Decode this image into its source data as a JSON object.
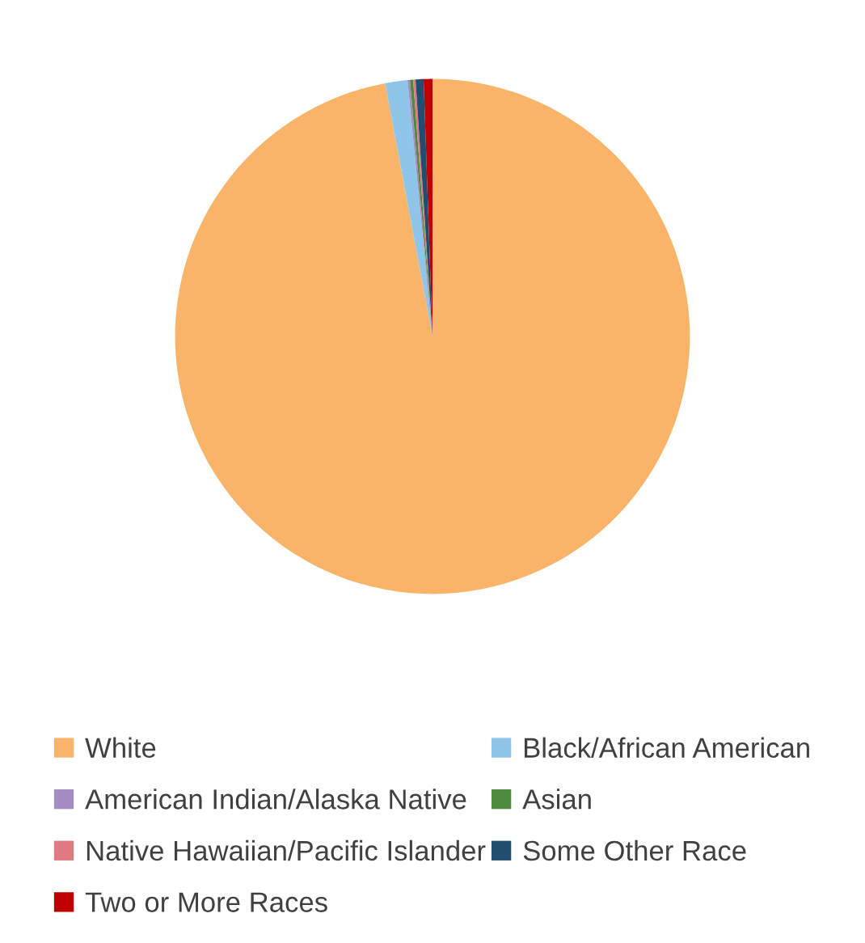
{
  "chart_data": {
    "type": "pie",
    "categories": [
      "White",
      "Black/African American",
      "American Indian/Alaska Native",
      "Asian",
      "Native Hawaiian/Pacific Islander",
      "Some Other Race",
      "Two or More Races"
    ],
    "values": [
      97.05,
      1.4,
      0.15,
      0.2,
      0.15,
      0.5,
      0.55
    ],
    "colors": [
      "#fab46a",
      "#8ec5e8",
      "#a58cc0",
      "#4e8a3d",
      "#e07a80",
      "#1f4e6e",
      "#c00000"
    ],
    "legend": "bottom"
  }
}
